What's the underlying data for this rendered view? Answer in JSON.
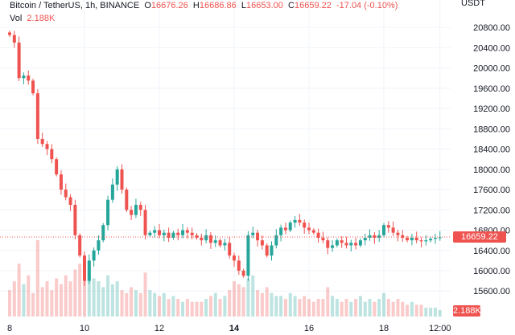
{
  "header": {
    "symbol": "Bitcoin / TetherUS, 1h, BINANCE",
    "open_label": "O",
    "open": "16676.26",
    "high_label": "H",
    "high": "16686.86",
    "low_label": "L",
    "low": "16653.00",
    "close_label": "C",
    "close": "16659.22",
    "change": "-17.04 (-0.10%)",
    "vol_label": "Vol",
    "vol": "2.188K"
  },
  "axis": {
    "unit": "USDT",
    "last_price_tag": "16659.22",
    "last_volume_tag": "2.188K"
  },
  "colors": {
    "up": "#26a69a",
    "down": "#ef5350"
  },
  "chart_data": {
    "type": "candlestick",
    "title": "Bitcoin / TetherUS, 1h, BINANCE",
    "ylabel": "USDT",
    "ylim": [
      15400,
      21000
    ],
    "yticks": [
      20800,
      20400,
      20000,
      19600,
      19200,
      18800,
      18400,
      18000,
      17600,
      17200,
      16800,
      16400,
      16000,
      15600
    ],
    "ytick_labels": [
      "20800.00",
      "20400.00",
      "20000.00",
      "19600.00",
      "19200.00",
      "18800.00",
      "18400.00",
      "18000.00",
      "17600.00",
      "17200.00",
      "16800.00",
      "16400.00",
      "16000.00",
      "15600.00"
    ],
    "xticks": [
      {
        "label": "8",
        "day": 0
      },
      {
        "label": "10",
        "day": 2
      },
      {
        "label": "12",
        "day": 4
      },
      {
        "label": "14",
        "day": 6,
        "bold": true
      },
      {
        "label": "16",
        "day": 8
      },
      {
        "label": "18",
        "day": 10
      },
      {
        "label": "12:00",
        "day": 11.5
      }
    ],
    "sample_interval_hours": 3,
    "start_open": 20700,
    "closes": [
      20650,
      20500,
      19800,
      19850,
      19750,
      19500,
      18600,
      18500,
      18400,
      18200,
      17900,
      17600,
      17450,
      17300,
      16700,
      16300,
      15800,
      16200,
      16400,
      16600,
      16900,
      17400,
      17700,
      18000,
      17600,
      17200,
      17100,
      17300,
      17200,
      16700,
      16750,
      16800,
      16700,
      16750,
      16650,
      16750,
      16700,
      16800,
      16750,
      16700,
      16650,
      16600,
      16700,
      16550,
      16600,
      16500,
      16550,
      16300,
      16200,
      16000,
      15900,
      16700,
      16750,
      16600,
      16500,
      16300,
      16500,
      16700,
      16850,
      16800,
      16950,
      17000,
      16950,
      16850,
      16800,
      16750,
      16650,
      16600,
      16450,
      16500,
      16600,
      16550,
      16500,
      16550,
      16500,
      16600,
      16650,
      16700,
      16650,
      16700,
      16900,
      16850,
      16750,
      16700,
      16650,
      16600,
      16650,
      16600,
      16580,
      16600,
      16630,
      16650,
      16659.22
    ],
    "volumes_k": [
      9,
      12,
      18,
      11,
      14,
      8,
      26,
      10,
      12,
      9,
      13,
      11,
      14,
      12,
      16,
      18,
      20,
      15,
      13,
      12,
      10,
      14,
      11,
      12,
      9,
      8,
      10,
      9,
      8,
      15,
      9,
      8,
      7,
      8,
      6,
      7,
      6,
      5,
      6,
      5,
      5,
      5,
      6,
      7,
      8,
      6,
      7,
      9,
      12,
      11,
      10,
      13,
      14,
      9,
      8,
      10,
      8,
      7,
      7,
      6,
      8,
      7,
      6,
      7,
      6,
      5,
      6,
      6,
      10,
      7,
      6,
      5,
      6,
      5,
      6,
      7,
      5,
      6,
      5,
      6,
      8,
      6,
      5,
      6,
      5,
      4,
      5,
      4,
      4,
      3,
      3,
      3,
      2.188
    ]
  }
}
